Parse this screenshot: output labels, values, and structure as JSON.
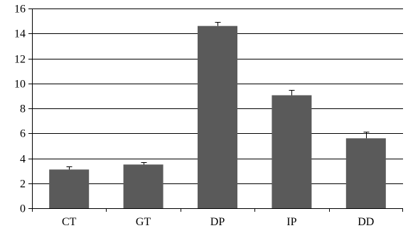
{
  "chart_data": {
    "type": "bar",
    "categories": [
      "CT",
      "GT",
      "DP",
      "IP",
      "DD"
    ],
    "values": [
      3.1,
      3.5,
      14.6,
      9.05,
      5.6
    ],
    "errors": [
      0.25,
      0.2,
      0.35,
      0.45,
      0.55
    ],
    "title": "",
    "xlabel": "",
    "ylabel": "",
    "ylim": [
      0,
      16
    ],
    "yticks": [
      "0",
      "2",
      "4",
      "6",
      "8",
      "10",
      "12",
      "14",
      "16"
    ],
    "grid": true,
    "legend": "none",
    "bar_color": "#5a5a5a",
    "axis_color": "#000000"
  }
}
